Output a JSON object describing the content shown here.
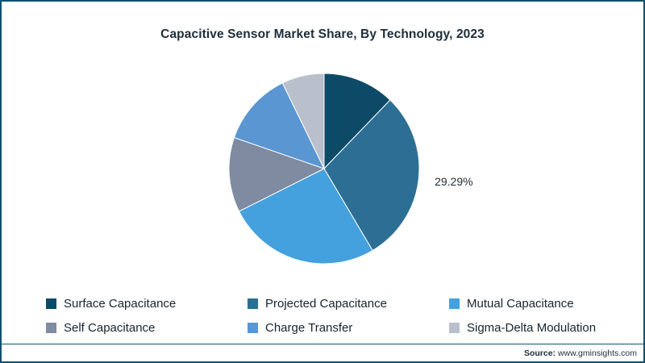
{
  "footer": {
    "source_label": "Source:",
    "source_url": "www.gminsights.com"
  },
  "theme": {
    "frame_border": "#0f516f",
    "title_color": "#1d2d3a",
    "label_color": "#1f2a33",
    "legend_text": "#18242e"
  },
  "chart_data": {
    "type": "pie",
    "title": "Capacitive Sensor Market Share, By Technology, 2023",
    "start_angle_deg": 0,
    "direction": "clockwise",
    "legend_position": "bottom",
    "slices": [
      {
        "label": "Surface Capacitance",
        "value": 12.2,
        "color": "#0d4a68",
        "data_label": ""
      },
      {
        "label": "Projected Capacitance",
        "value": 29.29,
        "color": "#2d6f94",
        "data_label": "29.29%"
      },
      {
        "label": "Mutual Capacitance",
        "value": 26.1,
        "color": "#45a1dd",
        "data_label": ""
      },
      {
        "label": "Self Capacitance",
        "value": 12.7,
        "color": "#7e8ba1",
        "data_label": ""
      },
      {
        "label": "Charge Transfer",
        "value": 12.5,
        "color": "#5a96d2",
        "data_label": ""
      },
      {
        "label": "Sigma-Delta Modulation",
        "value": 7.21,
        "color": "#b9c0cb",
        "data_label": ""
      }
    ]
  }
}
